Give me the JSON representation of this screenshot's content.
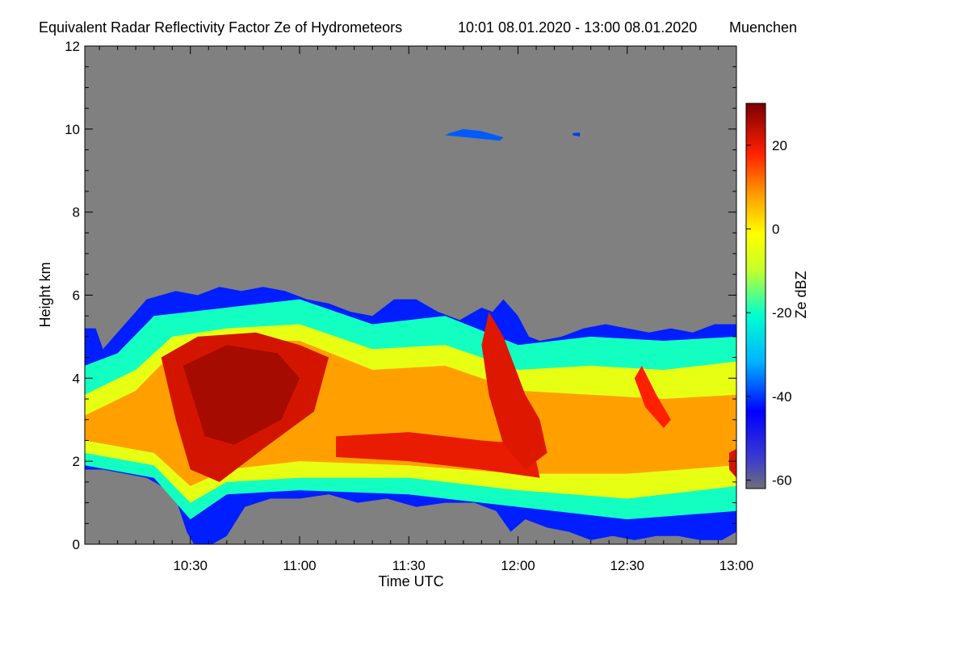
{
  "chart_data": {
    "type": "heatmap",
    "title": "Equivalent Radar Reflectivity Factor Ze of Hydrometeors",
    "time_range": "10:01 08.01.2020 - 13:00 08.01.2020",
    "location": "Muenchen",
    "xlabel": "Time UTC",
    "ylabel": "Height km",
    "x_range_min": [
      601,
      780
    ],
    "ylim": [
      0,
      12
    ],
    "x_ticks": [
      {
        "value": 630,
        "label": "10:30"
      },
      {
        "value": 660,
        "label": "11:00"
      },
      {
        "value": 690,
        "label": "11:30"
      },
      {
        "value": 720,
        "label": "12:00"
      },
      {
        "value": 750,
        "label": "12:30"
      },
      {
        "value": 780,
        "label": "13:00"
      }
    ],
    "y_ticks": [
      {
        "value": 0,
        "label": "0"
      },
      {
        "value": 2,
        "label": "2"
      },
      {
        "value": 4,
        "label": "4"
      },
      {
        "value": 6,
        "label": "6"
      },
      {
        "value": 8,
        "label": "8"
      },
      {
        "value": 10,
        "label": "10"
      },
      {
        "value": 12,
        "label": "12"
      }
    ],
    "colorbar": {
      "label": "Ze dBZ",
      "range": [
        -62,
        30
      ],
      "ticks": [
        {
          "value": 20,
          "label": "20"
        },
        {
          "value": 0,
          "label": "0"
        },
        {
          "value": -20,
          "label": "-20"
        },
        {
          "value": -40,
          "label": "-40"
        },
        {
          "value": -60,
          "label": "-60"
        }
      ]
    },
    "background_color": "#808080",
    "cloud_top_km": [
      [
        601,
        5.2
      ],
      [
        604,
        5.2
      ],
      [
        606,
        4.7
      ],
      [
        609,
        5.0
      ],
      [
        612,
        5.3
      ],
      [
        615,
        5.6
      ],
      [
        618,
        5.9
      ],
      [
        622,
        6.0
      ],
      [
        626,
        6.1
      ],
      [
        632,
        6.0
      ],
      [
        638,
        6.2
      ],
      [
        644,
        6.1
      ],
      [
        650,
        6.2
      ],
      [
        656,
        6.1
      ],
      [
        662,
        5.9
      ],
      [
        668,
        5.8
      ],
      [
        674,
        5.6
      ],
      [
        680,
        5.5
      ],
      [
        686,
        5.9
      ],
      [
        692,
        5.9
      ],
      [
        698,
        5.6
      ],
      [
        704,
        5.4
      ],
      [
        710,
        5.7
      ],
      [
        713,
        5.6
      ],
      [
        716,
        5.9
      ],
      [
        720,
        5.5
      ],
      [
        723,
        5.0
      ],
      [
        726,
        4.9
      ],
      [
        732,
        5.0
      ],
      [
        738,
        5.2
      ],
      [
        744,
        5.3
      ],
      [
        750,
        5.2
      ],
      [
        756,
        5.1
      ],
      [
        762,
        5.2
      ],
      [
        768,
        5.1
      ],
      [
        774,
        5.3
      ],
      [
        780,
        5.3
      ]
    ],
    "cloud_base_km": [
      [
        601,
        1.8
      ],
      [
        606,
        1.8
      ],
      [
        612,
        1.7
      ],
      [
        618,
        1.6
      ],
      [
        622,
        1.4
      ],
      [
        626,
        1.1
      ],
      [
        629,
        0.3
      ],
      [
        631,
        0.0
      ],
      [
        636,
        0.0
      ],
      [
        640,
        0.2
      ],
      [
        645,
        0.9
      ],
      [
        652,
        1.1
      ],
      [
        660,
        1.1
      ],
      [
        668,
        1.2
      ],
      [
        676,
        1.0
      ],
      [
        684,
        1.1
      ],
      [
        692,
        0.9
      ],
      [
        700,
        1.0
      ],
      [
        708,
        1.0
      ],
      [
        714,
        0.8
      ],
      [
        718,
        0.3
      ],
      [
        722,
        0.6
      ],
      [
        728,
        0.4
      ],
      [
        734,
        0.3
      ],
      [
        740,
        0.1
      ],
      [
        746,
        0.2
      ],
      [
        752,
        0.1
      ],
      [
        758,
        0.2
      ],
      [
        764,
        0.2
      ],
      [
        770,
        0.1
      ],
      [
        776,
        0.1
      ],
      [
        780,
        0.3
      ]
    ],
    "bands_dbz": [
      {
        "bottom": [
          [
            601,
            1.9
          ],
          [
            620,
            1.6
          ],
          [
            630,
            0.6
          ],
          [
            640,
            1.2
          ],
          [
            660,
            1.3
          ],
          [
            690,
            1.2
          ],
          [
            720,
            0.9
          ],
          [
            750,
            0.6
          ],
          [
            780,
            0.8
          ]
        ],
        "top": [
          [
            601,
            4.3
          ],
          [
            610,
            4.6
          ],
          [
            620,
            5.5
          ],
          [
            640,
            5.7
          ],
          [
            660,
            5.9
          ],
          [
            680,
            5.3
          ],
          [
            700,
            5.5
          ],
          [
            720,
            4.8
          ],
          [
            740,
            5.0
          ],
          [
            760,
            4.9
          ],
          [
            780,
            5.0
          ]
        ],
        "dbz": -20
      },
      {
        "bottom": [
          [
            601,
            2.2
          ],
          [
            620,
            1.9
          ],
          [
            630,
            1.0
          ],
          [
            640,
            1.5
          ],
          [
            660,
            1.6
          ],
          [
            690,
            1.6
          ],
          [
            720,
            1.3
          ],
          [
            750,
            1.1
          ],
          [
            780,
            1.4
          ]
        ],
        "top": [
          [
            601,
            3.6
          ],
          [
            615,
            4.2
          ],
          [
            625,
            5.0
          ],
          [
            640,
            5.2
          ],
          [
            660,
            5.3
          ],
          [
            680,
            4.7
          ],
          [
            700,
            4.8
          ],
          [
            720,
            4.2
          ],
          [
            740,
            4.3
          ],
          [
            760,
            4.2
          ],
          [
            780,
            4.4
          ]
        ],
        "dbz": -5
      },
      {
        "bottom": [
          [
            601,
            2.5
          ],
          [
            620,
            2.2
          ],
          [
            630,
            1.4
          ],
          [
            640,
            1.8
          ],
          [
            660,
            2.0
          ],
          [
            690,
            1.9
          ],
          [
            720,
            1.7
          ],
          [
            750,
            1.7
          ],
          [
            780,
            1.9
          ]
        ],
        "top": [
          [
            601,
            3.1
          ],
          [
            615,
            3.7
          ],
          [
            625,
            4.6
          ],
          [
            640,
            4.9
          ],
          [
            660,
            4.9
          ],
          [
            680,
            4.2
          ],
          [
            700,
            4.3
          ],
          [
            720,
            3.7
          ],
          [
            740,
            3.6
          ],
          [
            760,
            3.5
          ],
          [
            780,
            3.6
          ]
        ],
        "dbz": 8
      }
    ],
    "cores_dbz": [
      {
        "points": [
          [
            622,
            4.5
          ],
          [
            632,
            5.0
          ],
          [
            648,
            5.1
          ],
          [
            660,
            4.8
          ],
          [
            668,
            4.5
          ],
          [
            664,
            3.2
          ],
          [
            650,
            2.3
          ],
          [
            638,
            1.5
          ],
          [
            630,
            1.8
          ],
          [
            626,
            3.0
          ]
        ],
        "dbz": 22
      },
      {
        "points": [
          [
            628,
            4.3
          ],
          [
            640,
            4.8
          ],
          [
            654,
            4.6
          ],
          [
            660,
            4.0
          ],
          [
            655,
            3.0
          ],
          [
            642,
            2.4
          ],
          [
            634,
            2.6
          ]
        ],
        "dbz": 26
      },
      {
        "points": [
          [
            670,
            2.6
          ],
          [
            690,
            2.7
          ],
          [
            710,
            2.5
          ],
          [
            724,
            2.4
          ],
          [
            726,
            1.6
          ],
          [
            710,
            1.8
          ],
          [
            690,
            2.0
          ],
          [
            670,
            2.1
          ]
        ],
        "dbz": 20
      },
      {
        "points": [
          [
            712,
            5.6
          ],
          [
            716,
            5.0
          ],
          [
            722,
            3.6
          ],
          [
            726,
            3.0
          ],
          [
            728,
            2.2
          ],
          [
            722,
            1.8
          ],
          [
            716,
            2.4
          ],
          [
            712,
            3.6
          ],
          [
            710,
            4.8
          ]
        ],
        "dbz": 21
      },
      {
        "points": [
          [
            754,
            4.3
          ],
          [
            758,
            3.6
          ],
          [
            762,
            3.0
          ],
          [
            760,
            2.8
          ],
          [
            755,
            3.3
          ],
          [
            752,
            4.0
          ]
        ],
        "dbz": 18
      },
      {
        "points": [
          [
            778,
            2.2
          ],
          [
            780,
            2.3
          ],
          [
            780,
            1.6
          ],
          [
            778,
            1.8
          ]
        ],
        "dbz": 22
      }
    ],
    "patches_dbz": [
      {
        "points": [
          [
            701,
            9.9
          ],
          [
            705,
            10.0
          ],
          [
            710,
            9.95
          ],
          [
            716,
            9.8
          ],
          [
            715,
            9.72
          ],
          [
            706,
            9.8
          ],
          [
            700,
            9.85
          ]
        ],
        "dbz": -38
      },
      {
        "points": [
          [
            735,
            9.9
          ],
          [
            737,
            9.92
          ],
          [
            737,
            9.82
          ],
          [
            735,
            9.85
          ]
        ],
        "dbz": -40
      }
    ]
  }
}
